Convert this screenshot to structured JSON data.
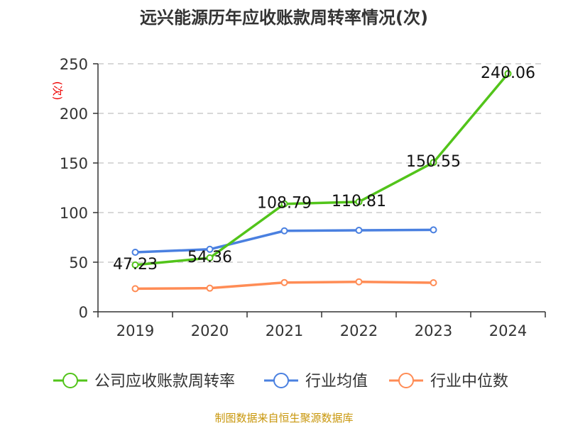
{
  "chart_data": {
    "type": "line",
    "title": "远兴能源历年应收账款周转率情况(次)",
    "ylabel": "(次)",
    "xlabel": "",
    "ylim": [
      0,
      250
    ],
    "yticks": [
      0,
      50,
      100,
      150,
      200,
      250
    ],
    "grid": true,
    "legend_position": "bottom",
    "categories": [
      "2019",
      "2020",
      "2021",
      "2022",
      "2023",
      "2024"
    ],
    "series": [
      {
        "name": "公司应收账款周转率",
        "color": "#52c41a",
        "values": [
          47.23,
          54.36,
          108.79,
          110.81,
          150.55,
          240.06
        ],
        "labels": [
          "47.23",
          "54.36",
          "108.79",
          "110.81",
          "150.55",
          "240.06"
        ]
      },
      {
        "name": "行业均值",
        "color": "#4a80e0",
        "values": [
          60,
          63,
          81.6,
          82.1,
          82.6,
          null
        ]
      },
      {
        "name": "行业中位数",
        "color": "#ff8c55",
        "values": [
          23.3,
          23.8,
          29.5,
          30.2,
          29.3,
          null
        ]
      }
    ],
    "source": "制图数据来自恒生聚源数据库"
  }
}
